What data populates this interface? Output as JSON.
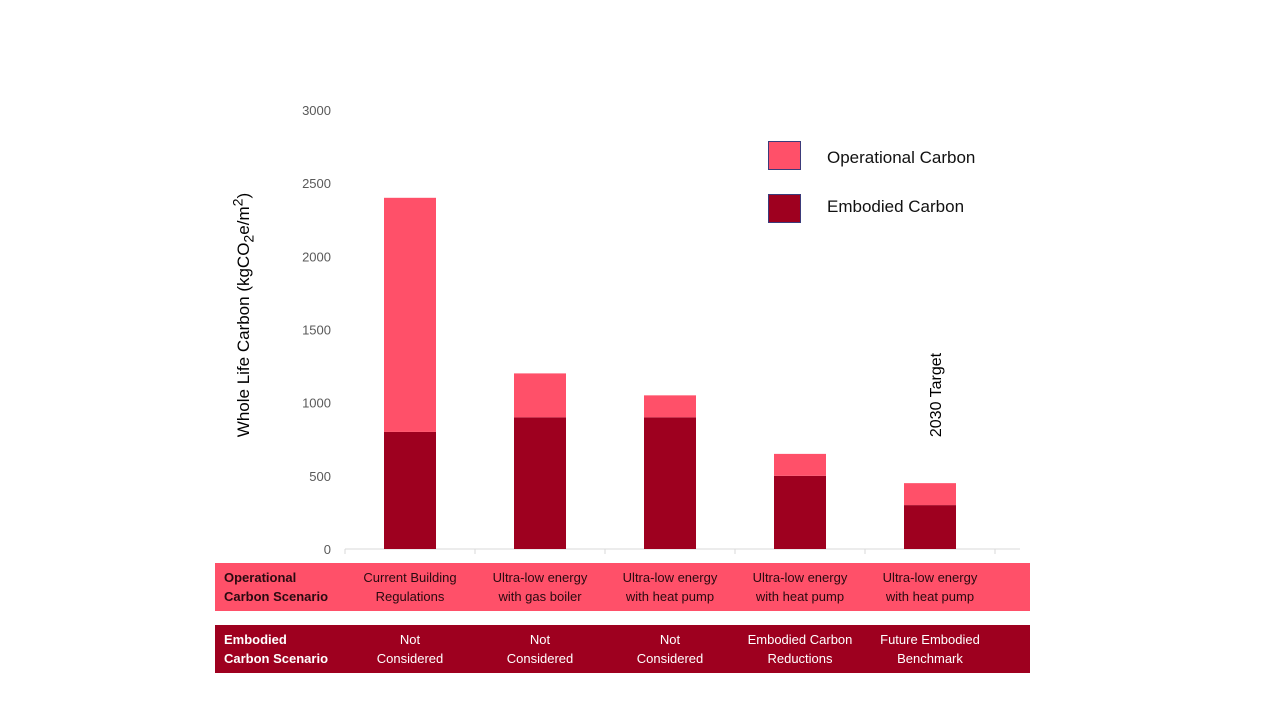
{
  "chart_data": {
    "type": "bar",
    "stacked": true,
    "ylabel": "Whole Life Carbon (kgCO2e/m2)",
    "ylim": [
      0,
      3000
    ],
    "yticks": [
      0,
      500,
      1000,
      1500,
      2000,
      2500,
      3000
    ],
    "grid": false,
    "legend_placement": "top-right",
    "categories": [
      "Current Building Regulations",
      "Ultra-low energy with gas boiler",
      "Ultra-low energy with heat pump",
      "Ultra-low energy with heat pump",
      "Ultra-low energy with heat pump"
    ],
    "series": [
      {
        "name": "Embodied Carbon",
        "color": "#9E001F",
        "values": [
          800,
          900,
          900,
          500,
          300
        ]
      },
      {
        "name": "Operational Carbon",
        "color": "#FF5069",
        "values": [
          1600,
          300,
          150,
          150,
          150
        ]
      }
    ],
    "annotation": "2030 Target"
  },
  "table": {
    "operational": {
      "header": [
        "Operational",
        "Carbon Scenario"
      ],
      "cells": [
        [
          "Current Building",
          "Regulations"
        ],
        [
          "Ultra-low energy",
          "with gas boiler"
        ],
        [
          "Ultra-low energy",
          "with heat pump"
        ],
        [
          "Ultra-low energy",
          "with heat pump"
        ],
        [
          "Ultra-low energy",
          "with heat pump"
        ]
      ]
    },
    "embodied": {
      "header": [
        "Embodied",
        "Carbon Scenario"
      ],
      "cells": [
        [
          "Not",
          "Considered"
        ],
        [
          "Not",
          "Considered"
        ],
        [
          "Not",
          "Considered"
        ],
        [
          "Embodied Carbon",
          "Reductions"
        ],
        [
          "Future Embodied",
          "Benchmark"
        ]
      ]
    }
  }
}
